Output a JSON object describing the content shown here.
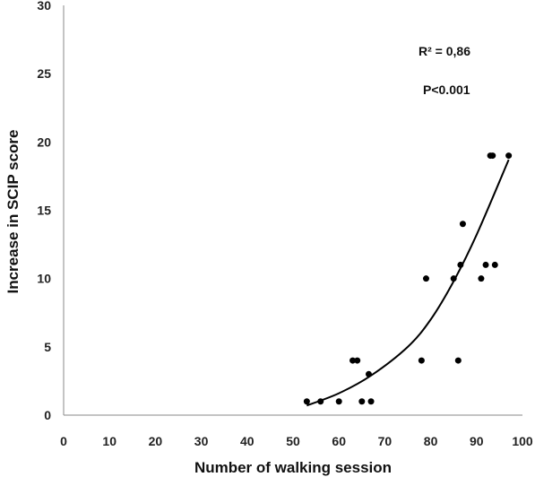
{
  "chart_data": {
    "type": "scatter",
    "title": "",
    "xlabel": "Number of walking session",
    "ylabel": "Increase in SCIP score",
    "xlim": [
      0,
      100
    ],
    "ylim": [
      0,
      30
    ],
    "xticks": [
      0,
      10,
      20,
      30,
      40,
      50,
      60,
      70,
      80,
      90,
      100
    ],
    "yticks": [
      0,
      5,
      10,
      15,
      20,
      25,
      30
    ],
    "grid": false,
    "legend": "none",
    "colors": {
      "points": "#000000",
      "trendline": "#000000",
      "axis": "#888888"
    },
    "points": [
      {
        "x": 53,
        "y": 1
      },
      {
        "x": 56,
        "y": 1
      },
      {
        "x": 60,
        "y": 1
      },
      {
        "x": 63,
        "y": 4
      },
      {
        "x": 64,
        "y": 4
      },
      {
        "x": 65,
        "y": 1
      },
      {
        "x": 66.5,
        "y": 3
      },
      {
        "x": 67,
        "y": 1
      },
      {
        "x": 78,
        "y": 4
      },
      {
        "x": 79,
        "y": 10
      },
      {
        "x": 85,
        "y": 10
      },
      {
        "x": 86,
        "y": 4
      },
      {
        "x": 86.5,
        "y": 11
      },
      {
        "x": 87,
        "y": 14
      },
      {
        "x": 91,
        "y": 10
      },
      {
        "x": 92,
        "y": 11
      },
      {
        "x": 93,
        "y": 19
      },
      {
        "x": 93.5,
        "y": 19
      },
      {
        "x": 94,
        "y": 11
      },
      {
        "x": 97,
        "y": 19
      }
    ],
    "trendline": {
      "type": "polynomial",
      "x_range": [
        53,
        97
      ],
      "points": [
        {
          "x": 53,
          "y": 0.7
        },
        {
          "x": 60,
          "y": 1.6
        },
        {
          "x": 67,
          "y": 2.9
        },
        {
          "x": 75,
          "y": 5.0
        },
        {
          "x": 80,
          "y": 7.0
        },
        {
          "x": 85,
          "y": 9.8
        },
        {
          "x": 90,
          "y": 13.2
        },
        {
          "x": 97,
          "y": 18.7
        }
      ]
    },
    "annotations": [
      "R² = 0,86",
      "P<0.001"
    ]
  }
}
